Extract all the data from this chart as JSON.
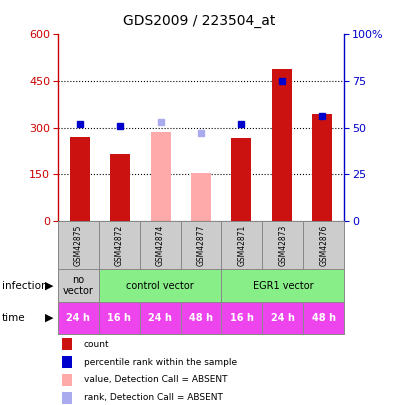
{
  "title": "GDS2009 / 223504_at",
  "samples": [
    "GSM42875",
    "GSM42872",
    "GSM42874",
    "GSM42877",
    "GSM42871",
    "GSM42873",
    "GSM42876"
  ],
  "bar_values": [
    270,
    215,
    285,
    155,
    265,
    490,
    345
  ],
  "bar_colors": [
    "#cc1111",
    "#cc1111",
    "#ffaaaa",
    "#ffaaaa",
    "#cc1111",
    "#cc1111",
    "#cc1111"
  ],
  "rank_values": [
    52,
    51,
    53,
    47,
    52,
    75,
    56
  ],
  "rank_colors": [
    "#0000cc",
    "#0000cc",
    "#aaaaee",
    "#aaaaee",
    "#0000cc",
    "#0000cc",
    "#0000cc"
  ],
  "ylim_left": [
    0,
    600
  ],
  "ylim_right": [
    0,
    100
  ],
  "yticks_left": [
    0,
    150,
    300,
    450,
    600
  ],
  "yticks_right": [
    0,
    25,
    50,
    75,
    100
  ],
  "ytick_labels_right": [
    "0",
    "25",
    "50",
    "75",
    "100%"
  ],
  "infection_data": [
    {
      "start": 0,
      "end": 1,
      "color": "#cccccc",
      "label": "no\nvector"
    },
    {
      "start": 1,
      "end": 4,
      "color": "#88ee88",
      "label": "control vector"
    },
    {
      "start": 4,
      "end": 7,
      "color": "#88ee88",
      "label": "EGR1 vector"
    }
  ],
  "time_labels": [
    "24 h",
    "16 h",
    "24 h",
    "48 h",
    "16 h",
    "24 h",
    "48 h"
  ],
  "time_color": "#ee44ee",
  "legend_items": [
    {
      "color": "#cc1111",
      "label": "count"
    },
    {
      "color": "#0000cc",
      "label": "percentile rank within the sample"
    },
    {
      "color": "#ffaaaa",
      "label": "value, Detection Call = ABSENT"
    },
    {
      "color": "#aaaaee",
      "label": "rank, Detection Call = ABSENT"
    }
  ],
  "bar_width": 0.5,
  "names_bg": "#cccccc",
  "chart_bg": "#ffffff",
  "grid_color": "black",
  "left_spine_color": "#cc0000",
  "right_spine_color": "#0000cc"
}
